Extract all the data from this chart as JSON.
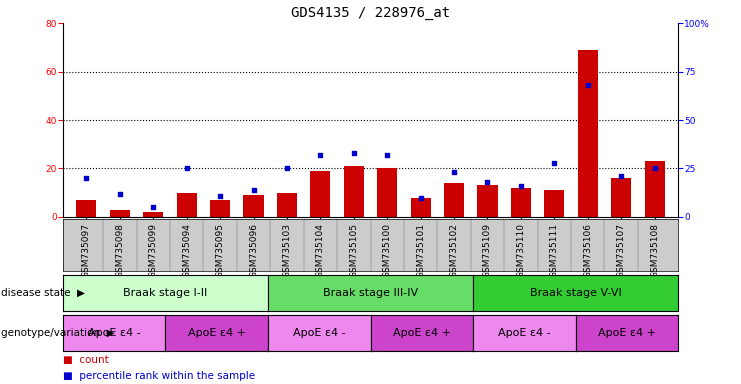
{
  "title": "GDS4135 / 228976_at",
  "samples": [
    "GSM735097",
    "GSM735098",
    "GSM735099",
    "GSM735094",
    "GSM735095",
    "GSM735096",
    "GSM735103",
    "GSM735104",
    "GSM735105",
    "GSM735100",
    "GSM735101",
    "GSM735102",
    "GSM735109",
    "GSM735110",
    "GSM735111",
    "GSM735106",
    "GSM735107",
    "GSM735108"
  ],
  "counts": [
    7,
    3,
    2,
    10,
    7,
    9,
    10,
    19,
    21,
    20,
    8,
    14,
    13,
    12,
    11,
    69,
    16,
    23
  ],
  "percentiles": [
    20,
    12,
    5,
    25,
    11,
    14,
    25,
    32,
    33,
    32,
    10,
    23,
    18,
    16,
    28,
    68,
    21,
    25
  ],
  "ylim_left": [
    0,
    80
  ],
  "ylim_right": [
    0,
    100
  ],
  "yticks_left": [
    0,
    20,
    40,
    60,
    80
  ],
  "yticks_right": [
    0,
    25,
    50,
    75,
    100
  ],
  "bar_color": "#cc0000",
  "dot_color": "#0000cc",
  "grid_color": "#000000",
  "background_color": "#ffffff",
  "xtick_bg_color": "#cccccc",
  "disease_state_label": "disease state",
  "genotype_label": "genotype/variation",
  "disease_groups": [
    {
      "label": "Braak stage I-II",
      "start": 0,
      "end": 6,
      "color": "#ccffcc"
    },
    {
      "label": "Braak stage III-IV",
      "start": 6,
      "end": 12,
      "color": "#66dd66"
    },
    {
      "label": "Braak stage V-VI",
      "start": 12,
      "end": 18,
      "color": "#33cc33"
    }
  ],
  "genotype_groups": [
    {
      "label": "ApoE ε4 -",
      "start": 0,
      "end": 3,
      "color": "#ee88ee"
    },
    {
      "label": "ApoE ε4 +",
      "start": 3,
      "end": 6,
      "color": "#cc44cc"
    },
    {
      "label": "ApoE ε4 -",
      "start": 6,
      "end": 9,
      "color": "#ee88ee"
    },
    {
      "label": "ApoE ε4 +",
      "start": 9,
      "end": 12,
      "color": "#cc44cc"
    },
    {
      "label": "ApoE ε4 -",
      "start": 12,
      "end": 15,
      "color": "#ee88ee"
    },
    {
      "label": "ApoE ε4 +",
      "start": 15,
      "end": 18,
      "color": "#cc44cc"
    }
  ],
  "legend_count_label": "count",
  "legend_pct_label": "percentile rank within the sample",
  "title_fontsize": 10,
  "tick_fontsize": 6.5,
  "label_fontsize": 7.5,
  "annot_fontsize": 8
}
